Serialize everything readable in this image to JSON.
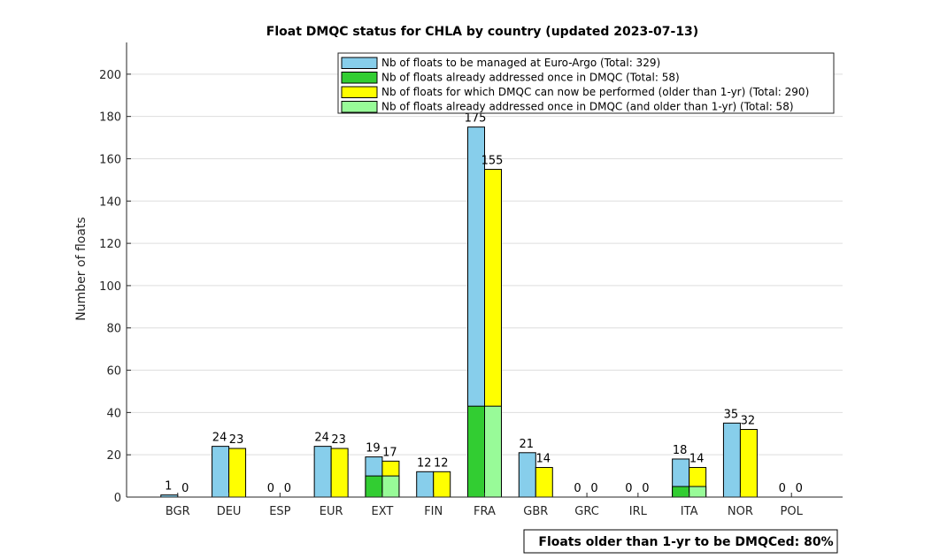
{
  "chart_data": {
    "type": "bar",
    "title": "Float DMQC status for CHLA by country (updated 2023-07-13)",
    "ylabel": "Number of floats",
    "xlabel": "",
    "ylim": [
      0,
      215
    ],
    "yticks": [
      0,
      20,
      40,
      60,
      80,
      100,
      120,
      140,
      160,
      180,
      200
    ],
    "grid": true,
    "legend_position": "top-right",
    "categories": [
      "BGR",
      "DEU",
      "ESP",
      "EUR",
      "EXT",
      "FIN",
      "FRA",
      "GBR",
      "GRC",
      "IRL",
      "ITA",
      "NOR",
      "POL"
    ],
    "series": [
      {
        "name": "Nb of floats to be managed at Euro-Argo (Total: 329)",
        "color": "#87ceeb",
        "values": [
          1,
          24,
          0,
          24,
          19,
          12,
          175,
          21,
          0,
          0,
          18,
          35,
          0
        ]
      },
      {
        "name": "Nb of floats already addressed once in DMQC (Total: 58)",
        "color": "#32cd32",
        "values": [
          0,
          0,
          0,
          0,
          10,
          0,
          43,
          0,
          0,
          0,
          5,
          0,
          0
        ]
      },
      {
        "name": "Nb of floats for which DMQC can now be performed (older than 1-yr) (Total: 290)",
        "color": "#ffff00",
        "values": [
          0,
          23,
          0,
          23,
          17,
          12,
          155,
          14,
          0,
          0,
          14,
          32,
          0
        ]
      },
      {
        "name": "Nb of floats already addressed once in DMQC (and older than 1-yr) (Total: 58)",
        "color": "#98fb98",
        "values": [
          0,
          0,
          0,
          0,
          10,
          0,
          43,
          0,
          0,
          0,
          5,
          0,
          0
        ]
      }
    ],
    "summary": "Floats older than 1-yr to be DMQCed: 80%"
  }
}
